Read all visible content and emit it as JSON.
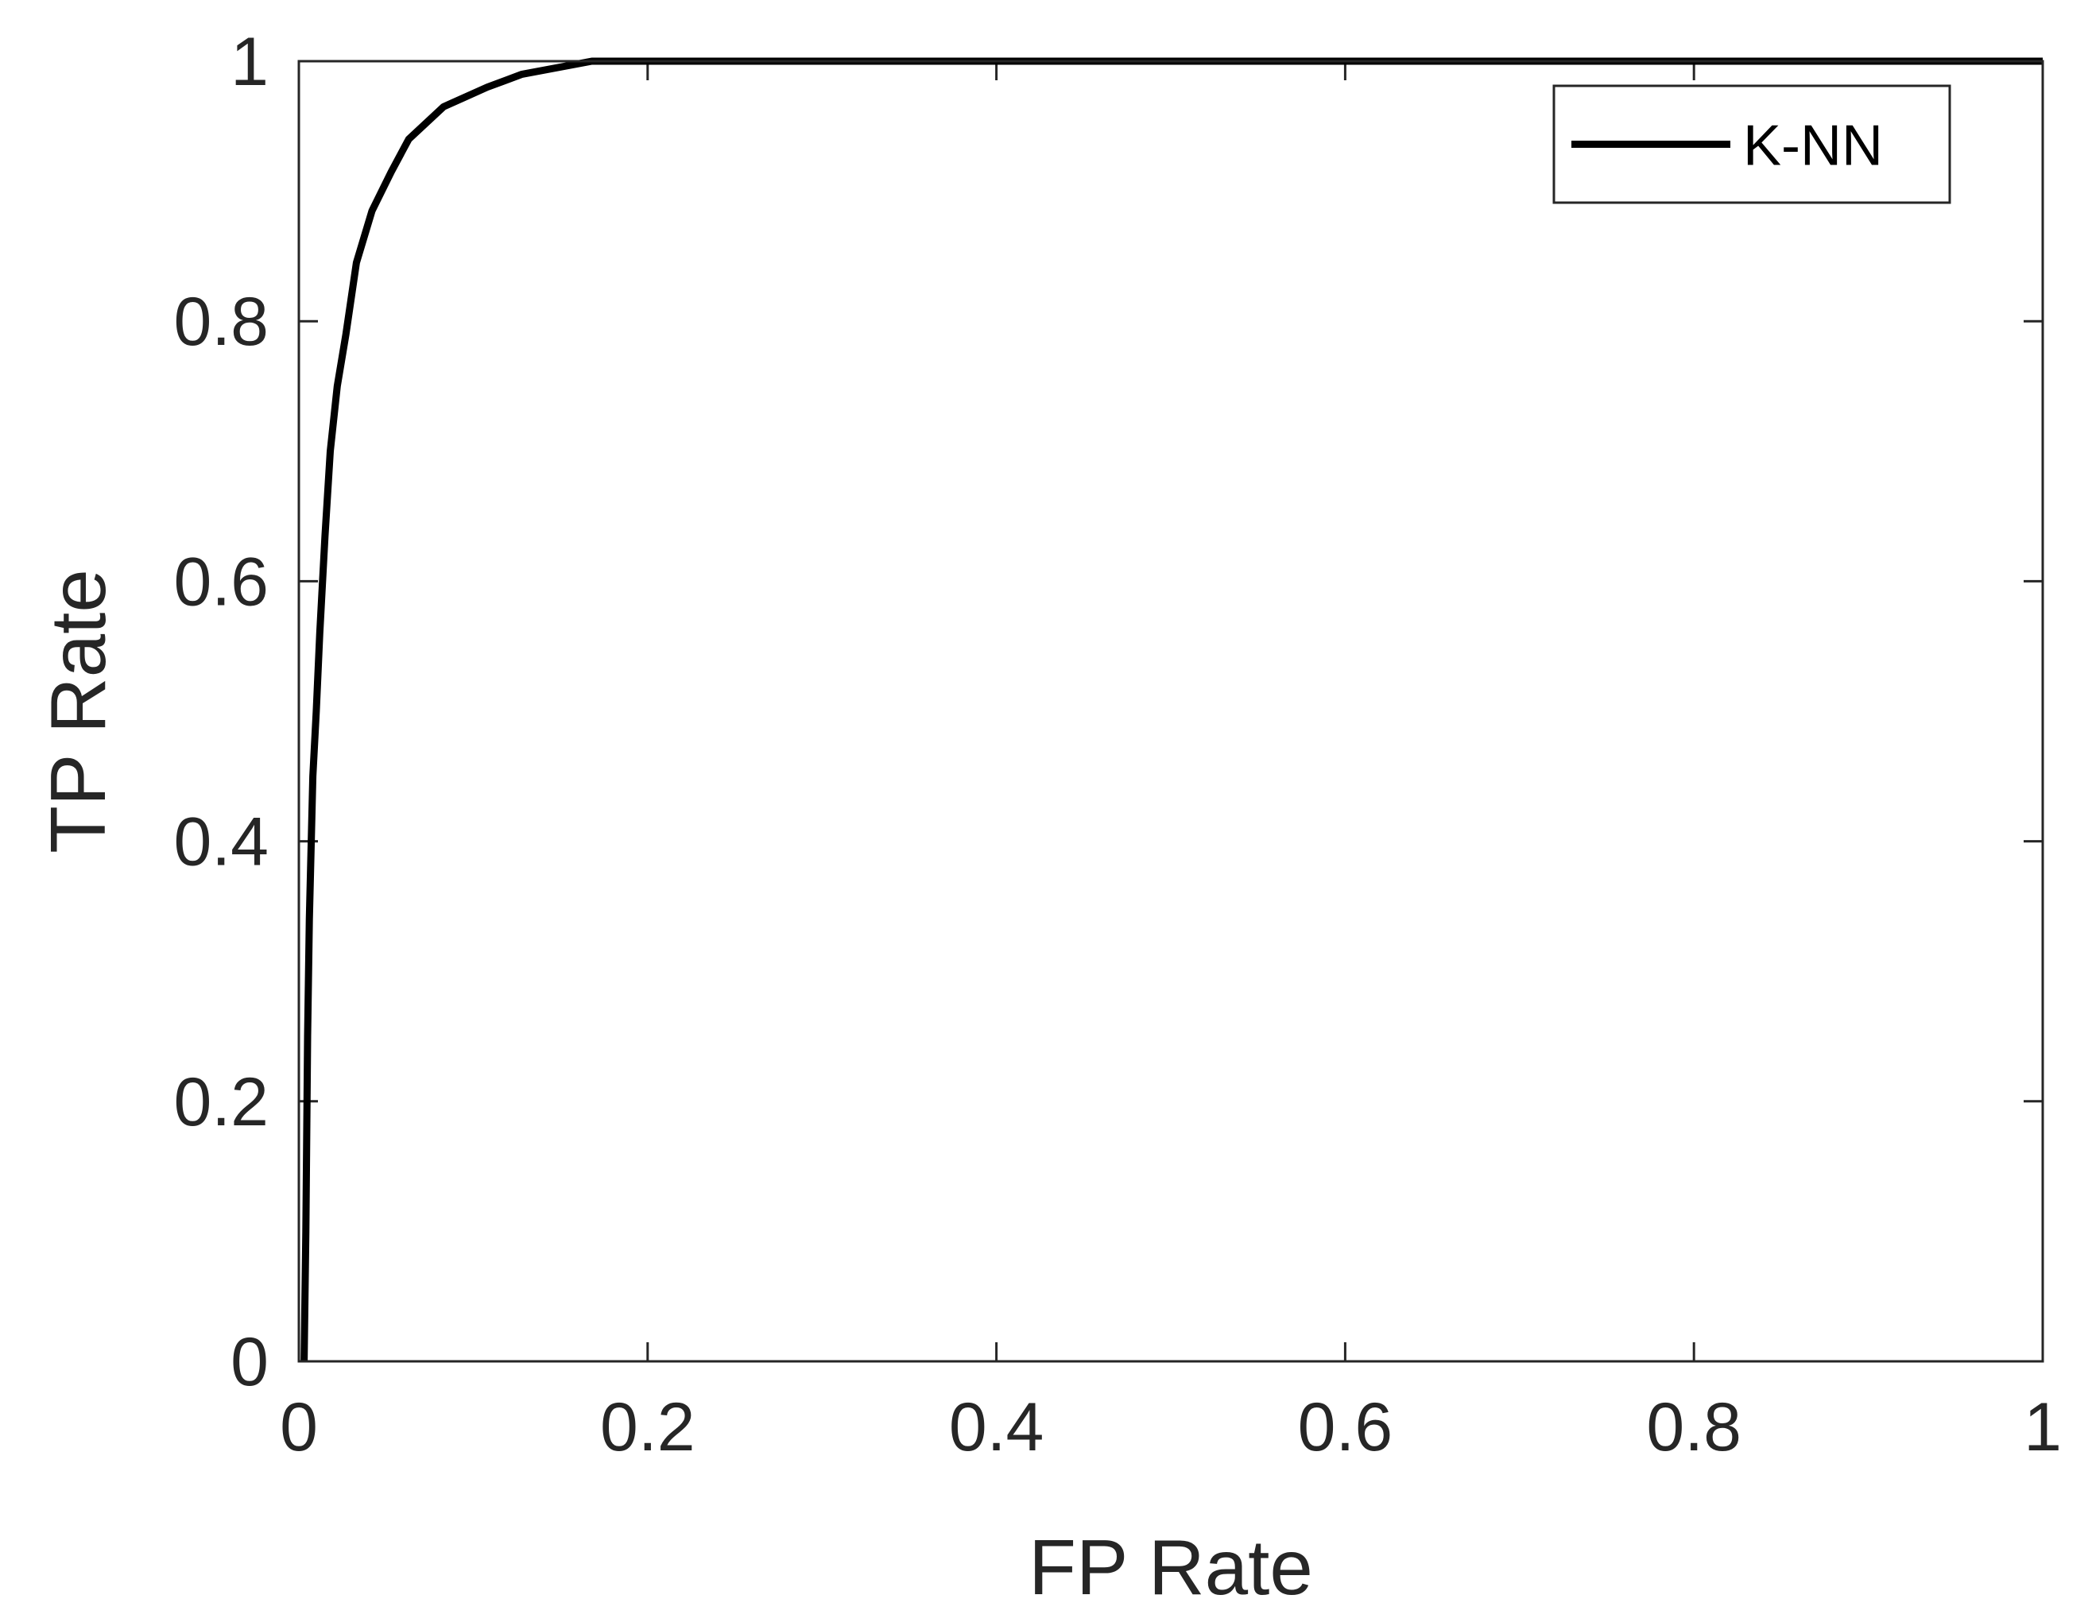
{
  "chart_data": {
    "type": "line",
    "title": "",
    "xlabel": "FP Rate",
    "ylabel": "TP Rate",
    "xlim": [
      0,
      1
    ],
    "ylim": [
      0,
      1
    ],
    "xticks": [
      0,
      0.2,
      0.4,
      0.6,
      0.8,
      1
    ],
    "yticks": [
      0,
      0.2,
      0.4,
      0.6,
      0.8,
      1
    ],
    "xtick_labels": [
      "0",
      "0.2",
      "0.4",
      "0.6",
      "0.8",
      "1"
    ],
    "ytick_labels": [
      "0",
      "0.2",
      "0.4",
      "0.6",
      "0.8",
      "1"
    ],
    "grid": false,
    "legend_position": "top-right",
    "series": [
      {
        "name": "K-NN",
        "color": "#000000",
        "x": [
          0.003,
          0.004,
          0.005,
          0.006,
          0.008,
          0.01,
          0.012,
          0.015,
          0.018,
          0.022,
          0.027,
          0.033,
          0.042,
          0.053,
          0.063,
          0.083,
          0.108,
          0.128,
          0.168,
          0.208,
          0.236,
          0.35,
          0.5,
          0.7,
          0.85,
          1.0
        ],
        "y": [
          0.0,
          0.1,
          0.25,
          0.34,
          0.45,
          0.5,
          0.56,
          0.635,
          0.7,
          0.75,
          0.79,
          0.845,
          0.885,
          0.915,
          0.94,
          0.965,
          0.98,
          0.99,
          1.0,
          1.0,
          1.0,
          1.0,
          1.0,
          1.0,
          1.0,
          1.0
        ]
      }
    ]
  }
}
